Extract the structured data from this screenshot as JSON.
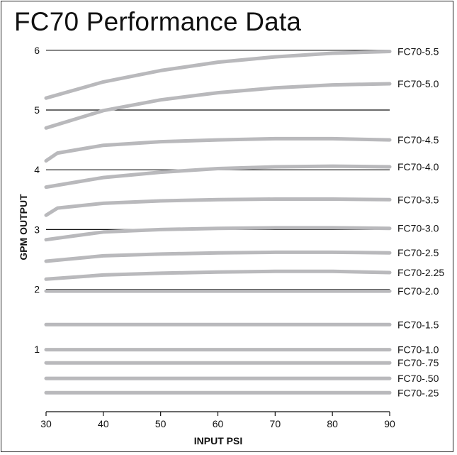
{
  "chart_data": {
    "type": "line",
    "title": "FC70 Performance Data",
    "xlabel": "INPUT PSI",
    "ylabel": "GPM OUTPUT",
    "xlim": [
      30,
      90
    ],
    "ylim": [
      0,
      6
    ],
    "x_ticks": [
      30,
      40,
      50,
      60,
      70,
      80,
      90
    ],
    "y_ticks": [
      1,
      2,
      3,
      4,
      5,
      6
    ],
    "grid": "horizontal",
    "line_color": "#b9b9bc",
    "grid_color": "#111111",
    "series": [
      {
        "name": "FC70-5.5",
        "x": [
          30,
          40,
          50,
          60,
          70,
          80,
          90
        ],
        "y": [
          5.2,
          5.47,
          5.66,
          5.8,
          5.89,
          5.95,
          5.98
        ]
      },
      {
        "name": "FC70-5.0",
        "x": [
          30,
          40,
          50,
          60,
          70,
          80,
          90
        ],
        "y": [
          4.7,
          4.99,
          5.17,
          5.29,
          5.37,
          5.42,
          5.44
        ]
      },
      {
        "name": "FC70-4.5",
        "x": [
          30,
          32,
          40,
          50,
          60,
          70,
          80,
          90
        ],
        "y": [
          4.15,
          4.28,
          4.41,
          4.47,
          4.5,
          4.52,
          4.52,
          4.5
        ]
      },
      {
        "name": "FC70-4.0",
        "x": [
          30,
          40,
          50,
          60,
          70,
          80,
          90
        ],
        "y": [
          3.71,
          3.87,
          3.96,
          4.02,
          4.05,
          4.06,
          4.05
        ]
      },
      {
        "name": "FC70-3.5",
        "x": [
          30,
          32,
          40,
          50,
          60,
          70,
          80,
          90
        ],
        "y": [
          3.24,
          3.36,
          3.44,
          3.48,
          3.5,
          3.51,
          3.51,
          3.5
        ]
      },
      {
        "name": "FC70-3.0",
        "x": [
          30,
          40,
          50,
          60,
          70,
          80,
          90
        ],
        "y": [
          2.83,
          2.96,
          3.0,
          3.02,
          3.03,
          3.03,
          3.02
        ]
      },
      {
        "name": "FC70-2.5",
        "x": [
          30,
          40,
          50,
          60,
          70,
          80,
          90
        ],
        "y": [
          2.47,
          2.56,
          2.59,
          2.61,
          2.62,
          2.62,
          2.61
        ]
      },
      {
        "name": "FC70-2.25",
        "x": [
          30,
          40,
          50,
          60,
          70,
          80,
          90
        ],
        "y": [
          2.17,
          2.24,
          2.27,
          2.29,
          2.3,
          2.3,
          2.28
        ]
      },
      {
        "name": "FC70-2.0",
        "x": [
          30,
          90
        ],
        "y": [
          1.97,
          1.97
        ]
      },
      {
        "name": "FC70-1.5",
        "x": [
          30,
          90
        ],
        "y": [
          1.41,
          1.41
        ]
      },
      {
        "name": "FC70-1.0",
        "x": [
          30,
          90
        ],
        "y": [
          0.99,
          0.99
        ]
      },
      {
        "name": "FC70-.75",
        "x": [
          30,
          90
        ],
        "y": [
          0.77,
          0.77
        ]
      },
      {
        "name": "FC70-.50",
        "x": [
          30,
          90
        ],
        "y": [
          0.51,
          0.51
        ]
      },
      {
        "name": "FC70-.25",
        "x": [
          30,
          90
        ],
        "y": [
          0.27,
          0.27
        ]
      }
    ]
  }
}
